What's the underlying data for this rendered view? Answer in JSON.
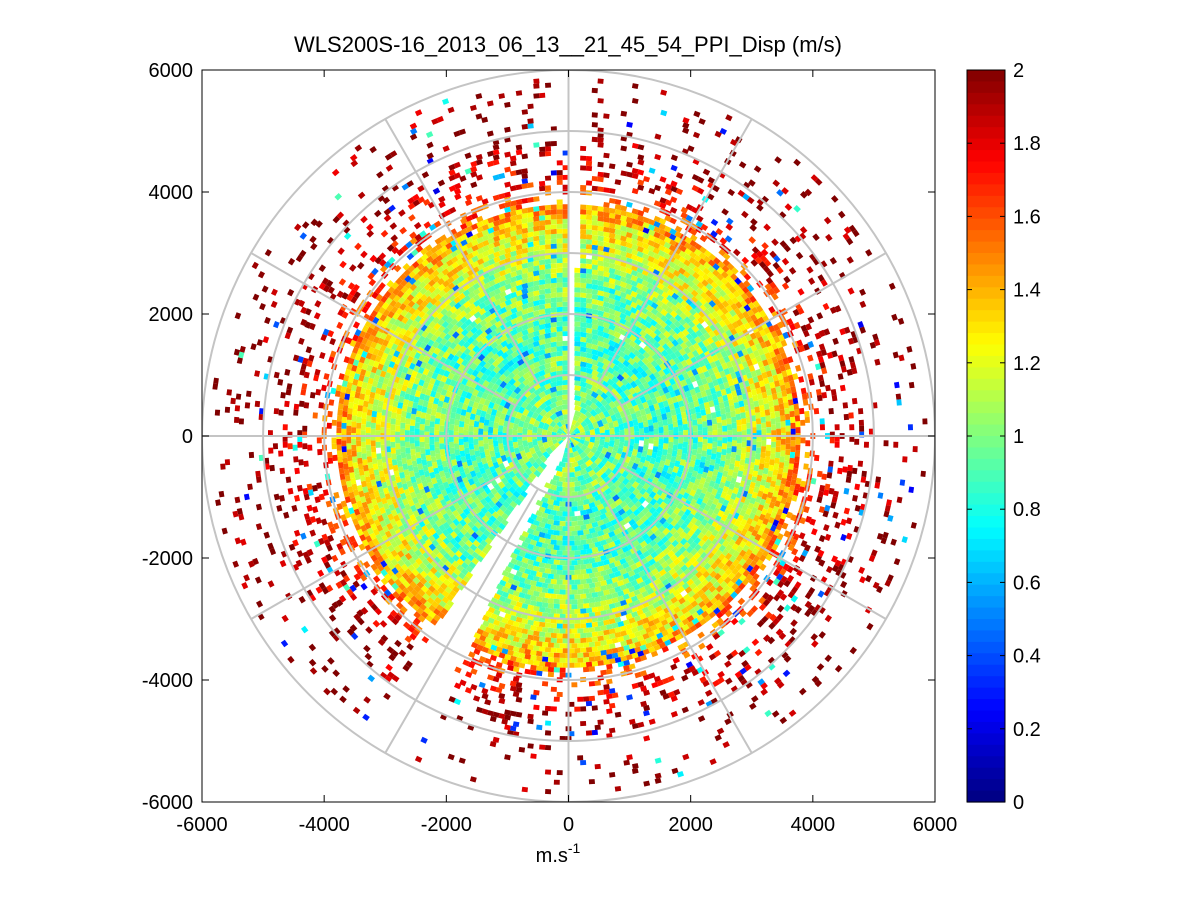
{
  "chart_data": {
    "type": "heatmap",
    "subtype": "polar-ppi-scan",
    "title": "WLS200S-16_2013_06_13__21_45_54_PPI_Disp (m/s)",
    "xlabel": "m.s",
    "xlabel_superscript": "-1",
    "ylabel": "",
    "xlim": [
      -6000,
      6000
    ],
    "ylim": [
      -6000,
      6000
    ],
    "x_ticks": [
      -6000,
      -4000,
      -2000,
      0,
      2000,
      4000,
      6000
    ],
    "y_ticks": [
      6000,
      4000,
      2000,
      0,
      -2000,
      -4000,
      -6000
    ],
    "x_tick_labels": [
      "-6000",
      "-4000",
      "-2000",
      "0",
      "2000",
      "4000",
      "6000"
    ],
    "y_tick_labels": [
      "6000",
      "4000",
      "2000",
      "0",
      "-2000",
      "-4000",
      "-6000"
    ],
    "range_rings": [
      1000,
      2000,
      3000,
      4000,
      5000,
      6000
    ],
    "spokes_deg": [
      0,
      30,
      60,
      90,
      120,
      150,
      180,
      210,
      240,
      270,
      300,
      330
    ],
    "blocked_sectors": [
      {
        "from_deg": 0,
        "to_deg": 2,
        "note": "gap at north"
      },
      {
        "from_deg": 206,
        "to_deg": 214,
        "note": "gap toward south-southwest"
      }
    ],
    "colorbar": {
      "colormap": "jet",
      "min": 0,
      "max": 2,
      "ticks": [
        2,
        1.8,
        1.6,
        1.4,
        1.2,
        1,
        0.8,
        0.6,
        0.4,
        0.2,
        0
      ],
      "tick_labels": [
        "2",
        "1.8",
        "1.6",
        "1.4",
        "1.2",
        "1",
        "0.8",
        "0.6",
        "0.4",
        "0.2",
        "0"
      ]
    },
    "range_profile": [
      {
        "range_m": 500,
        "typical_value": 1.0
      },
      {
        "range_m": 1500,
        "typical_value": 0.9
      },
      {
        "range_m": 2500,
        "typical_value": 1.0
      },
      {
        "range_m": 3500,
        "typical_value": 1.3
      },
      {
        "range_m": 4200,
        "typical_value": 1.8
      },
      {
        "range_m": 5000,
        "typical_value": 2.0
      },
      {
        "range_m": 5800,
        "typical_value": 2.0
      }
    ]
  }
}
